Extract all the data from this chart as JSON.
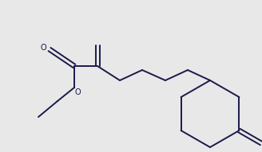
{
  "bg_color": "#e8e8e8",
  "line_color": "#1a1a4a",
  "line_width": 1.4,
  "fig_width": 3.28,
  "fig_height": 1.91,
  "dpi": 100,
  "xlim": [
    0,
    328
  ],
  "ylim": [
    0,
    191
  ]
}
